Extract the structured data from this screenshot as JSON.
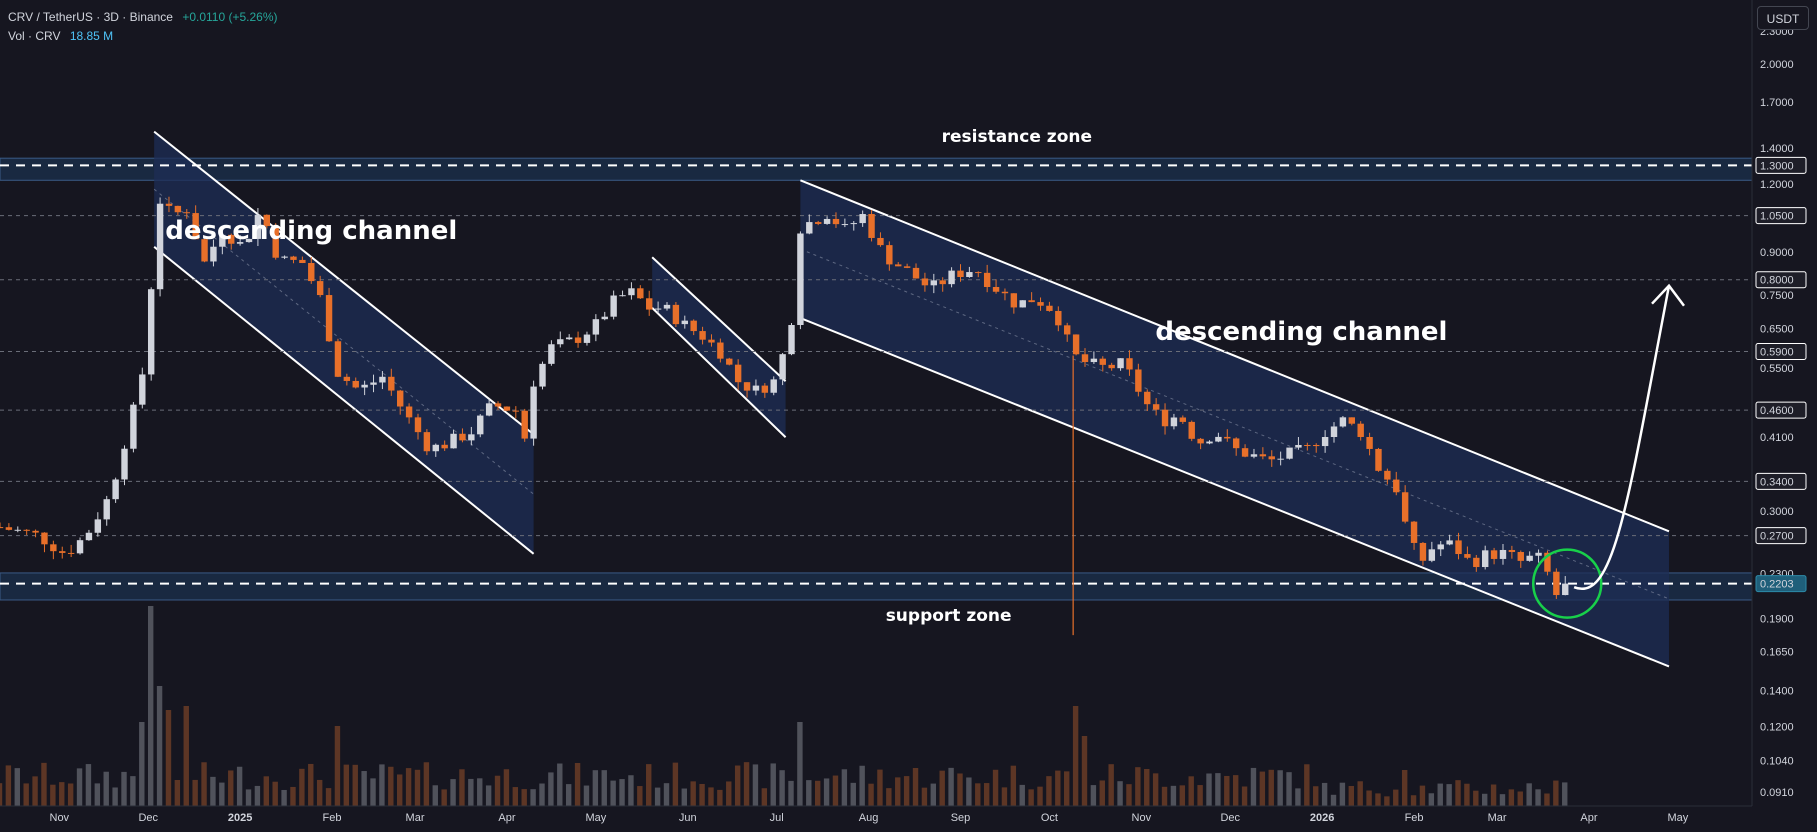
{
  "legend": {
    "symbol": "CRV / TetherUS · 3D · Binance",
    "change": "+0.0110 (+5.26%)",
    "volume_label": "Vol · CRV",
    "volume_value": "18.85 M"
  },
  "currency_button": "USDT",
  "colors": {
    "background": "#161620",
    "up_candle": "#d1d4dc",
    "down_candle": "#e8702a",
    "channel_fill": "#1e2d55",
    "zone_fill": "#1e3a5c",
    "grid_dashed": "#6a6d78",
    "white_line": "#ffffff",
    "highlight_circle": "#18d04a"
  },
  "chart_data": {
    "type": "candlestick",
    "scale": "log",
    "ylim": [
      0.085,
      2.6
    ],
    "x_range": [
      "2024-10-12",
      "2026-05-26"
    ],
    "price_ticks": [
      "2.3000",
      "2.0000",
      "1.7000",
      "1.4000",
      "1.2000",
      "0.9000",
      "0.7500",
      "0.6500",
      "0.5500",
      "0.4100",
      "0.3000",
      "0.2300",
      "0.1900",
      "0.1650",
      "0.1400",
      "0.1200",
      "0.1040",
      "0.0910"
    ],
    "price_ticks_hidden_overlap": [
      "1.0500"
    ],
    "highlighted_levels": [
      {
        "value": 1.3,
        "label": "1.3000"
      },
      {
        "value": 1.05,
        "label": "1.0500"
      },
      {
        "value": 0.8,
        "label": "0.8000"
      },
      {
        "value": 0.59,
        "label": "0.5900"
      },
      {
        "value": 0.46,
        "label": "0.4600"
      },
      {
        "value": 0.34,
        "label": "0.3400"
      },
      {
        "value": 0.27,
        "label": "0.2700"
      },
      {
        "value": 0.2203,
        "label": "0.2203"
      }
    ],
    "time_labels": [
      {
        "label": "Nov",
        "date": "2024-11-01"
      },
      {
        "label": "Dec",
        "date": "2024-12-01"
      },
      {
        "label": "2025",
        "date": "2025-01-01",
        "bold": true
      },
      {
        "label": "Feb",
        "date": "2025-02-01"
      },
      {
        "label": "Mar",
        "date": "2025-03-01"
      },
      {
        "label": "Apr",
        "date": "2025-04-01"
      },
      {
        "label": "May",
        "date": "2025-05-01"
      },
      {
        "label": "Jun",
        "date": "2025-06-01"
      },
      {
        "label": "Jul",
        "date": "2025-07-01"
      },
      {
        "label": "Aug",
        "date": "2025-08-01"
      },
      {
        "label": "Sep",
        "date": "2025-09-01"
      },
      {
        "label": "Oct",
        "date": "2025-10-01"
      },
      {
        "label": "Nov",
        "date": "2025-11-01"
      },
      {
        "label": "Dec",
        "date": "2025-12-01"
      },
      {
        "label": "2026",
        "date": "2026-01-01",
        "bold": true
      },
      {
        "label": "Feb",
        "date": "2026-02-01"
      },
      {
        "label": "Mar",
        "date": "2026-03-01"
      },
      {
        "label": "Apr",
        "date": "2026-04-01"
      },
      {
        "label": "May",
        "date": "2026-05-01"
      }
    ],
    "price_path": [
      [
        "2024-10-12",
        0.28
      ],
      [
        "2024-10-25",
        0.27
      ],
      [
        "2024-11-03",
        0.25
      ],
      [
        "2024-11-10",
        0.27
      ],
      [
        "2024-11-18",
        0.32
      ],
      [
        "2024-11-24",
        0.42
      ],
      [
        "2024-11-28",
        0.5
      ],
      [
        "2024-12-01",
        0.62
      ],
      [
        "2024-12-03",
        0.98
      ],
      [
        "2024-12-05",
        1.12
      ],
      [
        "2024-12-09",
        1.05
      ],
      [
        "2024-12-14",
        1.08
      ],
      [
        "2024-12-20",
        0.86
      ],
      [
        "2024-12-26",
        0.99
      ],
      [
        "2025-01-02",
        0.92
      ],
      [
        "2025-01-08",
        1.08
      ],
      [
        "2025-01-14",
        0.87
      ],
      [
        "2025-01-22",
        0.86
      ],
      [
        "2025-01-28",
        0.74
      ],
      [
        "2025-02-03",
        0.54
      ],
      [
        "2025-02-10",
        0.5
      ],
      [
        "2025-02-18",
        0.53
      ],
      [
        "2025-02-26",
        0.45
      ],
      [
        "2025-03-06",
        0.39
      ],
      [
        "2025-03-12",
        0.4
      ],
      [
        "2025-03-20",
        0.42
      ],
      [
        "2025-03-27",
        0.47
      ],
      [
        "2025-04-04",
        0.46
      ],
      [
        "2025-04-07",
        0.41
      ],
      [
        "2025-04-10",
        0.52
      ],
      [
        "2025-04-16",
        0.6
      ],
      [
        "2025-04-24",
        0.62
      ],
      [
        "2025-05-01",
        0.66
      ],
      [
        "2025-05-08",
        0.74
      ],
      [
        "2025-05-14",
        0.76
      ],
      [
        "2025-05-18",
        0.71
      ],
      [
        "2025-05-24",
        0.71
      ],
      [
        "2025-05-31",
        0.66
      ],
      [
        "2025-06-06",
        0.63
      ],
      [
        "2025-06-12",
        0.59
      ],
      [
        "2025-06-18",
        0.52
      ],
      [
        "2025-06-24",
        0.5
      ],
      [
        "2025-06-30",
        0.52
      ],
      [
        "2025-07-02",
        0.55
      ],
      [
        "2025-07-06",
        0.68
      ],
      [
        "2025-07-09",
        1.0
      ],
      [
        "2025-07-12",
        1.02
      ],
      [
        "2025-07-18",
        1.06
      ],
      [
        "2025-07-24",
        0.99
      ],
      [
        "2025-07-30",
        1.05
      ],
      [
        "2025-08-06",
        0.89
      ],
      [
        "2025-08-14",
        0.83
      ],
      [
        "2025-08-22",
        0.77
      ],
      [
        "2025-08-30",
        0.82
      ],
      [
        "2025-09-06",
        0.84
      ],
      [
        "2025-09-12",
        0.78
      ],
      [
        "2025-09-20",
        0.72
      ],
      [
        "2025-09-26",
        0.74
      ],
      [
        "2025-10-03",
        0.7
      ],
      [
        "2025-10-09",
        0.58
      ],
      [
        "2025-10-14",
        0.56
      ],
      [
        "2025-10-20",
        0.55
      ],
      [
        "2025-10-26",
        0.56
      ],
      [
        "2025-11-03",
        0.47
      ],
      [
        "2025-11-08",
        0.44
      ],
      [
        "2025-11-14",
        0.45
      ],
      [
        "2025-11-20",
        0.4
      ],
      [
        "2025-11-26",
        0.42
      ],
      [
        "2025-12-02",
        0.39
      ],
      [
        "2025-12-08",
        0.38
      ],
      [
        "2025-12-14",
        0.37
      ],
      [
        "2025-12-20",
        0.38
      ],
      [
        "2025-12-27",
        0.39
      ],
      [
        "2026-01-02",
        0.42
      ],
      [
        "2026-01-08",
        0.44
      ],
      [
        "2026-01-14",
        0.42
      ],
      [
        "2026-01-20",
        0.36
      ],
      [
        "2026-01-26",
        0.33
      ],
      [
        "2026-01-30",
        0.27
      ],
      [
        "2026-02-03",
        0.24
      ],
      [
        "2026-02-08",
        0.26
      ],
      [
        "2026-02-14",
        0.26
      ],
      [
        "2026-02-20",
        0.24
      ],
      [
        "2026-02-26",
        0.25
      ],
      [
        "2026-03-04",
        0.25
      ],
      [
        "2026-03-10",
        0.24
      ],
      [
        "2026-03-14",
        0.25
      ],
      [
        "2026-03-18",
        0.23
      ],
      [
        "2026-03-21",
        0.21
      ],
      [
        "2026-03-24",
        0.2203
      ]
    ],
    "volume_spikes": [
      [
        "2024-12-01",
        1.0
      ],
      [
        "2024-12-05",
        0.6
      ],
      [
        "2024-11-28",
        0.42
      ],
      [
        "2024-12-09",
        0.48
      ],
      [
        "2024-12-14",
        0.5
      ],
      [
        "2025-02-03",
        0.4
      ],
      [
        "2025-07-09",
        0.42
      ],
      [
        "2025-10-09",
        0.5
      ],
      [
        "2025-10-14",
        0.35
      ],
      [
        "2026-01-30",
        0.3
      ]
    ],
    "wick_events": [
      {
        "date": "2025-10-09",
        "low": 0.177
      }
    ],
    "channels": [
      {
        "upper_start": [
          "2024-12-03",
          1.5
        ],
        "upper_end": [
          "2025-04-10",
          0.415
        ],
        "lower_start": [
          "2024-12-03",
          0.92
        ],
        "lower_end": [
          "2025-04-10",
          0.25
        ],
        "mid_dashed": true
      },
      {
        "upper_start": [
          "2025-05-20",
          0.88
        ],
        "upper_end": [
          "2025-07-04",
          0.52
        ],
        "lower_start": [
          "2025-05-20",
          0.71
        ],
        "lower_end": [
          "2025-07-04",
          0.41
        ],
        "mid_dashed": false
      },
      {
        "upper_start": [
          "2025-07-09",
          1.22
        ],
        "upper_end": [
          "2026-04-28",
          0.275
        ],
        "lower_start": [
          "2025-07-09",
          0.68
        ],
        "lower_end": [
          "2026-04-28",
          0.155
        ],
        "mid_dashed": true
      }
    ],
    "zones": [
      {
        "name": "resistance",
        "low": 1.22,
        "high": 1.34
      },
      {
        "name": "support",
        "low": 0.2055,
        "high": 0.2305
      }
    ],
    "projection_arrow": {
      "from": [
        "2026-03-27",
        0.217
      ],
      "via": [
        "2026-04-14",
        0.4
      ],
      "to": [
        "2026-04-28",
        0.78
      ]
    },
    "highlight_circle": {
      "date": "2026-03-24",
      "value": 0.2203
    },
    "annotations": [
      {
        "text": "descending channel",
        "date": "2025-01-25",
        "value": 0.95,
        "style": "big"
      },
      {
        "text": "descending channel",
        "date": "2025-12-25",
        "value": 0.62,
        "style": "big"
      },
      {
        "text": "resistance zone",
        "date": "2025-09-20",
        "value": 1.435,
        "style": "small"
      },
      {
        "text": "support zone",
        "date": "2025-08-28",
        "value": 0.188,
        "style": "small"
      }
    ]
  }
}
